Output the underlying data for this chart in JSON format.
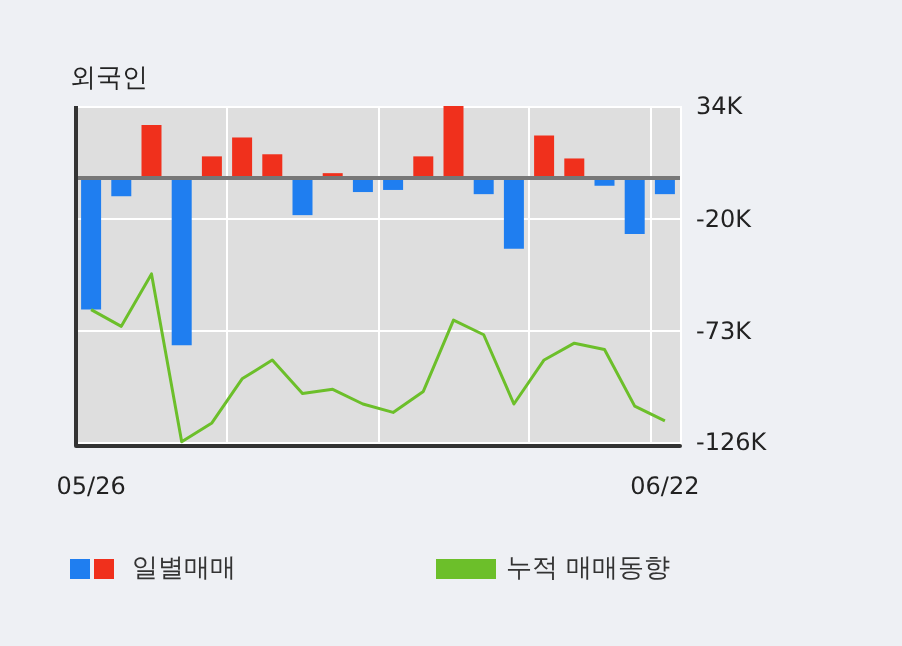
{
  "chart_data": {
    "type": "bar",
    "title": "외국인",
    "categories": [
      "05/26",
      null,
      null,
      null,
      null,
      null,
      null,
      null,
      null,
      null,
      null,
      null,
      null,
      null,
      null,
      null,
      null,
      null,
      null,
      "06/22"
    ],
    "series": [
      {
        "name": "일별매매",
        "colors": [
          "#1f7ef0",
          "#1f7ef0",
          "#f0301c",
          "#1f7ef0",
          "#f0301c",
          "#f0301c",
          "#f0301c",
          "#1f7ef0",
          "#f0301c",
          "#1f7ef0",
          "#1f7ef0",
          "#f0301c",
          "#f0301c",
          "#1f7ef0",
          "#1f7ef0",
          "#f0301c",
          "#f0301c",
          "#1f7ef0",
          "#1f7ef0",
          "#1f7ef0"
        ],
        "values": [
          -63,
          -9,
          25,
          -80,
          10,
          19,
          11,
          -18,
          2,
          -7,
          -6,
          10,
          34,
          -8,
          -34,
          20,
          9,
          -4,
          -27,
          -8
        ]
      },
      {
        "name": "누적 매매동향",
        "type": "line",
        "color": "#6cbf2a",
        "values": [
          -63,
          -71,
          -46,
          -126,
          -117,
          -96,
          -87,
          -103,
          -101,
          -108,
          -112,
          -102,
          -68,
          -75,
          -108,
          -87,
          -79,
          -82,
          -109,
          -116
        ]
      }
    ],
    "ylim": [
      -128,
      34
    ],
    "yticks": [
      {
        "value": 34,
        "label": "34K"
      },
      {
        "value": -20,
        "label": "-20K"
      },
      {
        "value": -73,
        "label": "-73K"
      },
      {
        "value": -126,
        "label": "-126K"
      }
    ],
    "grid": true,
    "legend": "bottom",
    "marker": "none"
  }
}
